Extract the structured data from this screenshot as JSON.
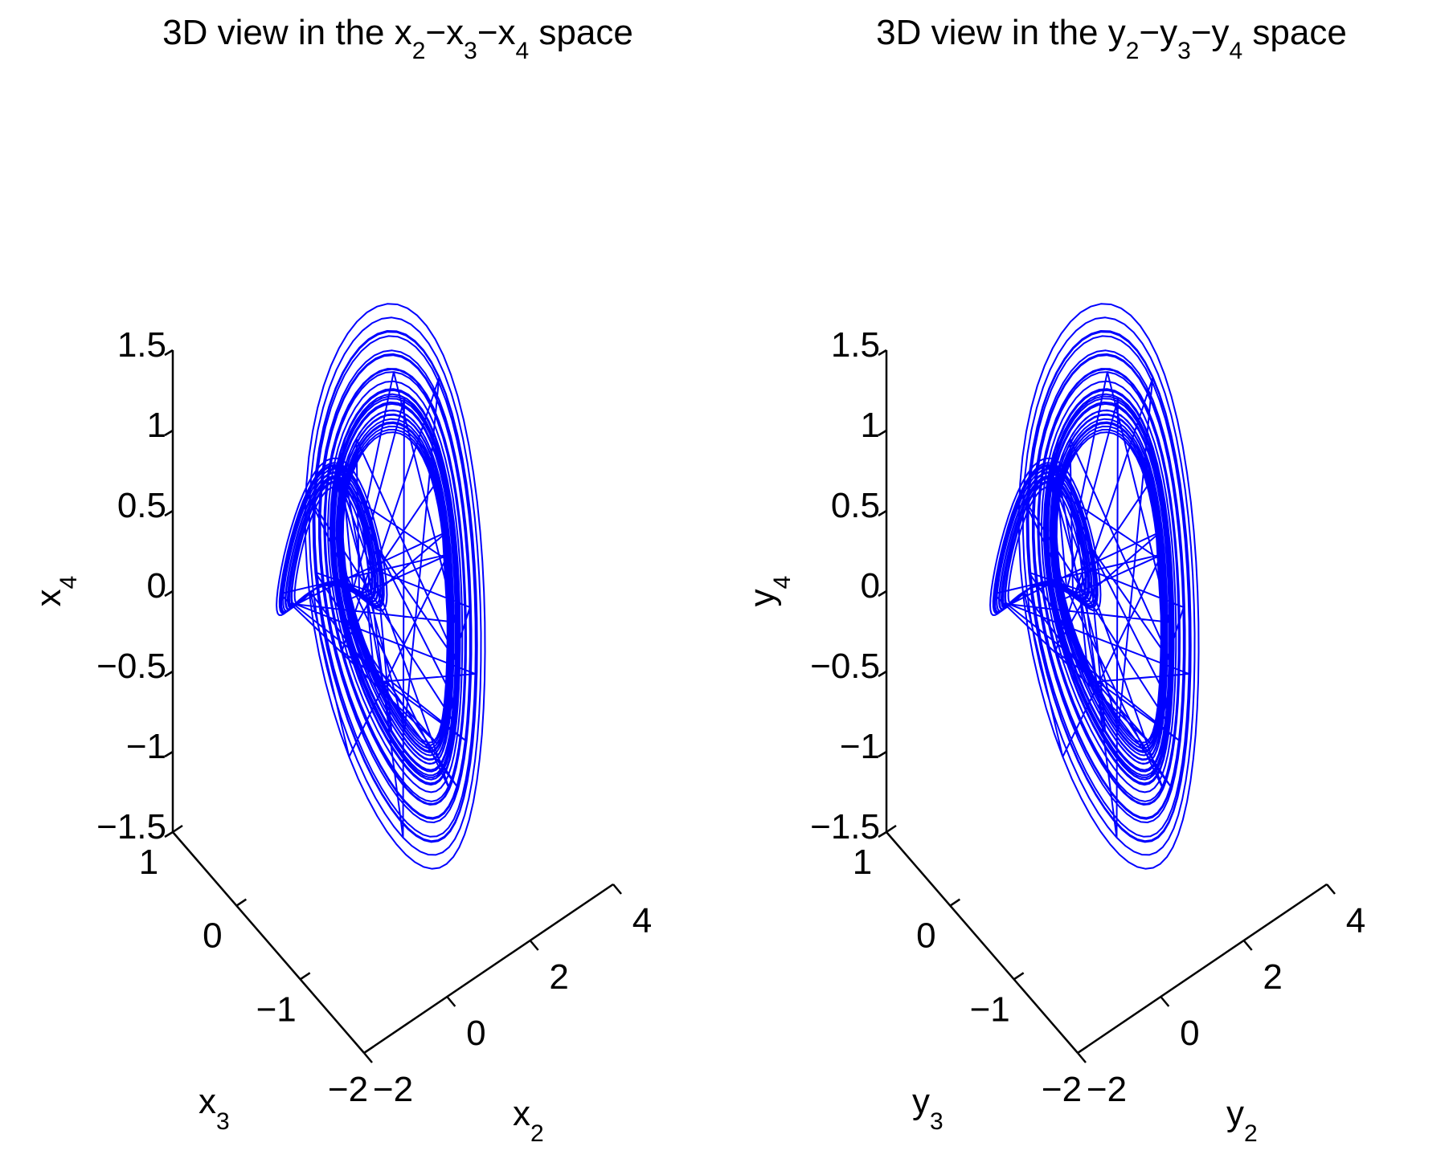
{
  "chart_data": [
    {
      "type": "line",
      "projection": "3d",
      "title": {
        "text": "3D view in the ",
        "v1": "x",
        "s1": "2",
        "v2": "x",
        "s2": "3",
        "v3": "x",
        "s3": "4",
        "tail": " space"
      },
      "xlabel": {
        "var": "x",
        "sub": "2"
      },
      "ylabel": {
        "var": "x",
        "sub": "3"
      },
      "zlabel": {
        "var": "x",
        "sub": "4"
      },
      "xlim": [
        -2,
        4
      ],
      "ylim": [
        -2,
        1
      ],
      "zlim": [
        -1.5,
        1.5
      ],
      "xticks": [
        "−2",
        "0",
        "2",
        "4"
      ],
      "yticks": [
        "−2",
        "−1",
        "0",
        "1"
      ],
      "zticks": [
        "−1.5",
        "−1",
        "−0.5",
        "0",
        "0.5",
        "1",
        "1.5"
      ],
      "line_color": "#0000ff",
      "grid": false,
      "legend": "none",
      "series": [
        {
          "system": "chaotic attractor trajectory, 4D hyperchaotic system",
          "x_range": [
            -0.5,
            3.2
          ],
          "y_range": [
            -1.7,
            0.9
          ],
          "z_range": [
            -1.55,
            1.5
          ]
        }
      ]
    },
    {
      "type": "line",
      "projection": "3d",
      "title": {
        "text": "3D view in the ",
        "v1": "y",
        "s1": "2",
        "v2": "y",
        "s2": "3",
        "v3": "y",
        "s3": "4",
        "tail": " space"
      },
      "xlabel": {
        "var": "y",
        "sub": "2"
      },
      "ylabel": {
        "var": "y",
        "sub": "3"
      },
      "zlabel": {
        "var": "y",
        "sub": "4"
      },
      "xlim": [
        -2,
        4
      ],
      "ylim": [
        -2,
        1
      ],
      "zlim": [
        -1.5,
        1.5
      ],
      "xticks": [
        "−2",
        "0",
        "2",
        "4"
      ],
      "yticks": [
        "−2",
        "−1",
        "0",
        "1"
      ],
      "zticks": [
        "−1.5",
        "−1",
        "−0.5",
        "0",
        "0.5",
        "1",
        "1.5"
      ],
      "line_color": "#0000ff",
      "grid": false,
      "legend": "none",
      "series": [
        {
          "system": "chaotic attractor trajectory, 4D hyperchaotic system",
          "x_range": [
            -0.5,
            3.2
          ],
          "y_range": [
            -1.7,
            0.9
          ],
          "z_range": [
            -1.55,
            1.5
          ]
        }
      ]
    }
  ]
}
